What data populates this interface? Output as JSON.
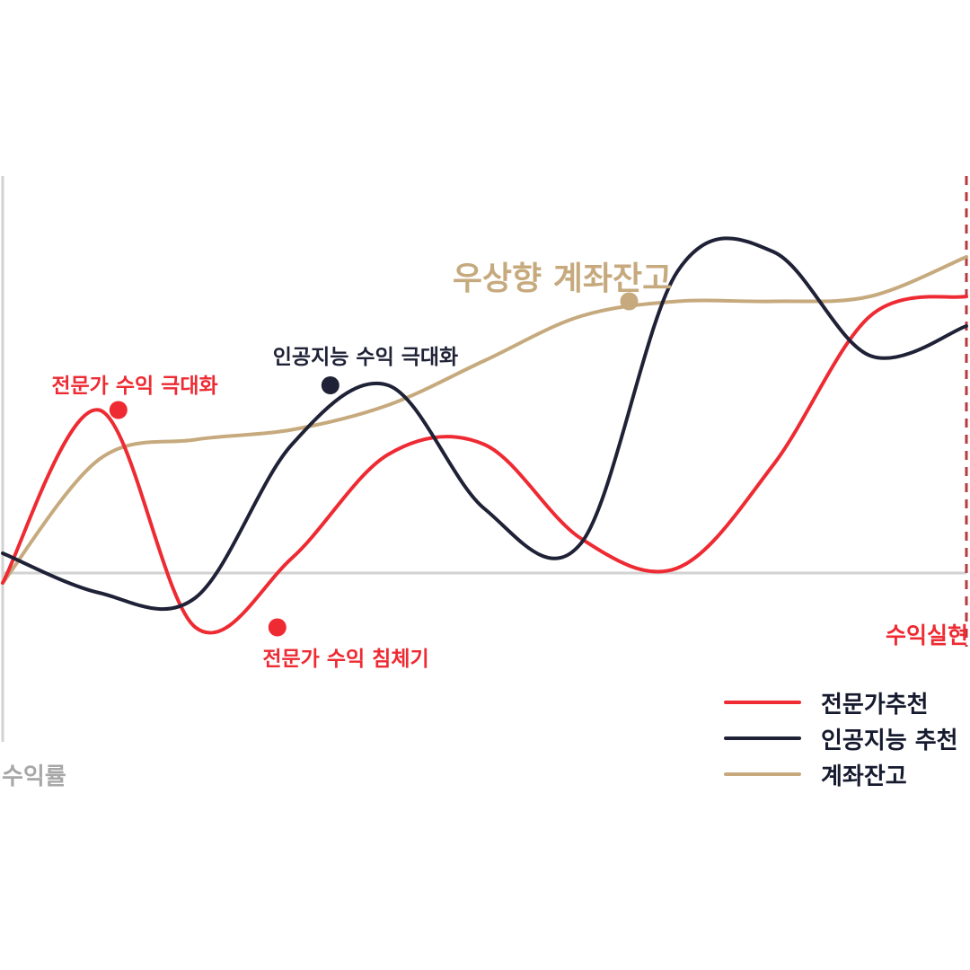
{
  "chart_data": {
    "type": "line",
    "ylabel": "수익률",
    "x": [
      0,
      1,
      2,
      3,
      4,
      5,
      6,
      7,
      8,
      9,
      10
    ],
    "series": [
      {
        "name": "전문가추천",
        "color": "#ee2a32",
        "values": [
          -0.1,
          1.65,
          -0.55,
          0.15,
          1.2,
          1.3,
          0.35,
          0.05,
          1.1,
          2.6,
          2.8
        ]
      },
      {
        "name": "인공지능 추천",
        "color": "#1f2236",
        "values": [
          0.2,
          -0.2,
          -0.25,
          1.3,
          1.9,
          0.65,
          0.3,
          3.05,
          3.25,
          2.2,
          2.5
        ]
      },
      {
        "name": "계좌잔고",
        "color": "#c6aa7e",
        "values": [
          -0.1,
          1.15,
          1.35,
          1.45,
          1.7,
          2.15,
          2.6,
          2.75,
          2.75,
          2.8,
          3.2
        ]
      }
    ],
    "annotations": [
      {
        "text": "전문가 수익 극대화",
        "series": "전문가추천",
        "x": 1.2,
        "y": 1.65,
        "color": "#ee2a32"
      },
      {
        "text": "전문가 수익 침체기",
        "series": "전문가추천",
        "x": 2.85,
        "y": -0.55,
        "color": "#ee2a32"
      },
      {
        "text": "인공지능 수익 극대화",
        "series": "인공지능 추천",
        "x": 3.4,
        "y": 1.9,
        "color": "#1f2236"
      },
      {
        "text": "우상향 계좌잔고",
        "series": "계좌잔고",
        "x": 6.5,
        "y": 2.75,
        "color": "#c6aa7e"
      },
      {
        "text": "수익실현",
        "x": 10,
        "color": "#ee2a32"
      }
    ],
    "grid": false,
    "legend": "bottom-right"
  }
}
